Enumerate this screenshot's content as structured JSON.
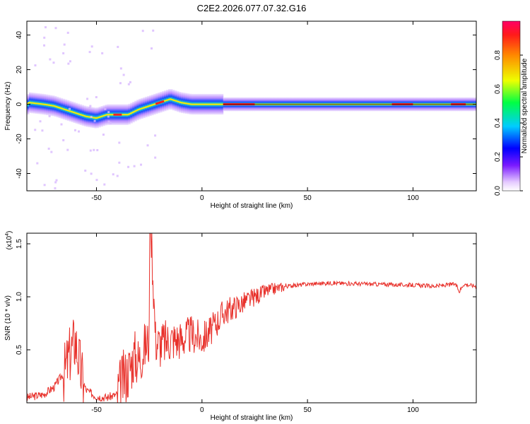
{
  "title": "C2E2.2026.077.07.32.G16",
  "chart_data": [
    {
      "type": "heatmap",
      "xlabel": "Height of straight line (km)",
      "ylabel": "Frequency (Hz)",
      "xlim": [
        -83,
        130
      ],
      "ylim": [
        -50,
        48
      ],
      "xticks": [
        -50,
        0,
        50,
        100
      ],
      "yticks": [
        -40,
        -20,
        0,
        20,
        40
      ],
      "ridge": [
        {
          "x": -82,
          "f": 1
        },
        {
          "x": -75,
          "f": 0
        },
        {
          "x": -70,
          "f": -1
        },
        {
          "x": -65,
          "f": -3
        },
        {
          "x": -60,
          "f": -5
        },
        {
          "x": -55,
          "f": -7
        },
        {
          "x": -50,
          "f": -8
        },
        {
          "x": -45,
          "f": -6
        },
        {
          "x": -40,
          "f": -6
        },
        {
          "x": -35,
          "f": -6
        },
        {
          "x": -30,
          "f": -3
        },
        {
          "x": -25,
          "f": -1
        },
        {
          "x": -20,
          "f": 1
        },
        {
          "x": -15,
          "f": 3
        },
        {
          "x": -10,
          "f": 1
        },
        {
          "x": -5,
          "f": 0
        },
        {
          "x": 0,
          "f": 0
        },
        {
          "x": 5,
          "f": 0
        },
        {
          "x": 10,
          "f": 0
        },
        {
          "x": 130,
          "f": 0
        }
      ],
      "colorbar": {
        "label": "Normalized spectral amplitude",
        "ticks": [
          "0.0",
          "0.2",
          "0.4",
          "0.6",
          "0.8"
        ],
        "range": [
          0,
          1
        ]
      }
    },
    {
      "type": "line",
      "xlabel": "Height of straight line (km)",
      "ylabel": "SNR (10 * v/v)",
      "scale_label": "(x10",
      "scale_exp": "4",
      "xlim": [
        -83,
        130
      ],
      "ylim": [
        0,
        1.6
      ],
      "xticks": [
        -50,
        0,
        50,
        100
      ],
      "yticks": [
        "0.5",
        "1.0",
        "1.5"
      ],
      "series": [
        {
          "color": "#e8302a",
          "x": [
            -83,
            -75,
            -70,
            -65,
            -62,
            -60,
            -57,
            -55,
            -50,
            -45,
            -40,
            -38,
            -35,
            -32,
            -30,
            -28,
            -25,
            -24,
            -22,
            -20,
            -15,
            -10,
            -5,
            0,
            5,
            10,
            15,
            20,
            25,
            30,
            35,
            40,
            50,
            60,
            80,
            100,
            110,
            120,
            122,
            124,
            130
          ],
          "y": [
            0.05,
            0.08,
            0.15,
            0.3,
            0.5,
            0.6,
            0.25,
            0.12,
            0.06,
            0.05,
            0.08,
            0.2,
            0.3,
            0.45,
            0.4,
            0.5,
            0.6,
            1.6,
            0.6,
            0.55,
            0.6,
            0.6,
            0.65,
            0.6,
            0.7,
            0.85,
            0.9,
            0.95,
            1.0,
            1.05,
            1.08,
            1.1,
            1.12,
            1.13,
            1.12,
            1.11,
            1.1,
            1.12,
            1.05,
            1.12,
            1.1
          ]
        }
      ]
    }
  ]
}
